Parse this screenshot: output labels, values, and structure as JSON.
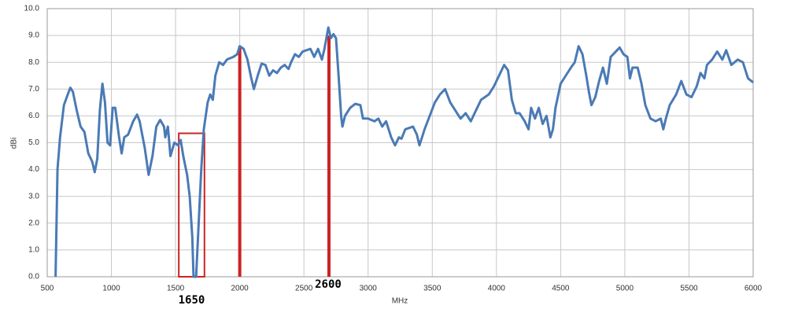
{
  "chart_data": {
    "type": "line",
    "xlabel": "MHz",
    "ylabel": "dBi",
    "xlim": [
      500,
      6000
    ],
    "ylim": [
      0,
      10
    ],
    "xticks": [
      500,
      1000,
      1500,
      2000,
      2500,
      3000,
      3500,
      4000,
      4500,
      5000,
      5500,
      6000
    ],
    "yticks": [
      {
        "value": 0,
        "label": "0.0"
      },
      {
        "value": 1,
        "label": "1.0"
      },
      {
        "value": 2,
        "label": "2.0"
      },
      {
        "value": 3,
        "label": "3.0"
      },
      {
        "value": 4,
        "label": "4.0"
      },
      {
        "value": 5,
        "label": "5.0"
      },
      {
        "value": 6,
        "label": "6.0"
      },
      {
        "value": 7,
        "label": "7.0"
      },
      {
        "value": 8,
        "label": "8.0"
      },
      {
        "value": 9,
        "label": "9.0"
      },
      {
        "value": 10,
        "label": "10.0"
      }
    ],
    "grid": true,
    "x": [
      565,
      580,
      600,
      630,
      660,
      680,
      700,
      730,
      760,
      790,
      820,
      850,
      870,
      890,
      910,
      930,
      950,
      970,
      990,
      1010,
      1030,
      1060,
      1080,
      1100,
      1130,
      1170,
      1200,
      1220,
      1260,
      1290,
      1320,
      1350,
      1380,
      1410,
      1420,
      1440,
      1460,
      1490,
      1520,
      1540,
      1560,
      1590,
      1610,
      1630,
      1640,
      1660,
      1680,
      1700,
      1720,
      1750,
      1770,
      1790,
      1810,
      1840,
      1870,
      1900,
      1950,
      1980,
      2000,
      2030,
      2060,
      2090,
      2110,
      2140,
      2170,
      2200,
      2230,
      2260,
      2290,
      2320,
      2350,
      2380,
      2400,
      2430,
      2460,
      2490,
      2520,
      2550,
      2580,
      2610,
      2640,
      2660,
      2690,
      2710,
      2730,
      2750,
      2770,
      2790,
      2800,
      2820,
      2860,
      2900,
      2940,
      2960,
      3000,
      3050,
      3080,
      3110,
      3140,
      3180,
      3210,
      3240,
      3260,
      3290,
      3350,
      3380,
      3400,
      3440,
      3480,
      3520,
      3560,
      3600,
      3640,
      3680,
      3720,
      3760,
      3800,
      3840,
      3880,
      3940,
      3980,
      4020,
      4060,
      4090,
      4120,
      4150,
      4180,
      4220,
      4250,
      4270,
      4300,
      4330,
      4360,
      4390,
      4420,
      4440,
      4460,
      4500,
      4540,
      4580,
      4610,
      4640,
      4670,
      4700,
      4720,
      4740,
      4770,
      4800,
      4830,
      4860,
      4890,
      4930,
      4960,
      4990,
      5020,
      5040,
      5060,
      5100,
      5130,
      5160,
      5200,
      5240,
      5280,
      5300,
      5320,
      5350,
      5400,
      5440,
      5480,
      5520,
      5560,
      5590,
      5620,
      5640,
      5680,
      5720,
      5760,
      5790,
      5830,
      5880,
      5920,
      5960,
      6000
    ],
    "series": [
      {
        "color": "#4a7ab5",
        "values": [
          0,
          4.0,
          5.2,
          6.4,
          6.8,
          7.05,
          6.9,
          6.2,
          5.6,
          5.4,
          4.6,
          4.3,
          3.9,
          4.4,
          6.2,
          7.2,
          6.5,
          5.0,
          4.9,
          6.3,
          6.3,
          5.2,
          4.6,
          5.2,
          5.3,
          5.8,
          6.05,
          5.8,
          4.8,
          3.8,
          4.5,
          5.6,
          5.85,
          5.6,
          5.2,
          5.6,
          4.5,
          5.0,
          4.9,
          5.1,
          4.5,
          3.8,
          3.0,
          1.5,
          0,
          0,
          2.0,
          4.0,
          5.5,
          6.5,
          6.8,
          6.6,
          7.5,
          8.0,
          7.9,
          8.1,
          8.2,
          8.3,
          8.6,
          8.5,
          8.1,
          7.4,
          7.0,
          7.5,
          7.95,
          7.9,
          7.5,
          7.7,
          7.6,
          7.8,
          7.9,
          7.75,
          8.0,
          8.3,
          8.2,
          8.4,
          8.45,
          8.5,
          8.2,
          8.5,
          8.1,
          8.5,
          9.3,
          8.9,
          9.05,
          8.9,
          7.5,
          6.0,
          5.6,
          6.0,
          6.3,
          6.45,
          6.4,
          5.9,
          5.9,
          5.8,
          5.9,
          5.6,
          5.8,
          5.2,
          4.9,
          5.2,
          5.15,
          5.5,
          5.6,
          5.3,
          4.9,
          5.5,
          6.0,
          6.5,
          6.8,
          7.0,
          6.5,
          6.2,
          5.9,
          6.1,
          5.8,
          6.2,
          6.6,
          6.8,
          7.1,
          7.5,
          7.9,
          7.7,
          6.6,
          6.1,
          6.1,
          5.8,
          5.5,
          6.3,
          5.9,
          6.3,
          5.7,
          6.0,
          5.2,
          5.5,
          6.3,
          7.2,
          7.5,
          7.8,
          8.0,
          8.6,
          8.3,
          7.5,
          6.9,
          6.4,
          6.7,
          7.3,
          7.8,
          7.2,
          8.2,
          8.4,
          8.55,
          8.3,
          8.2,
          7.4,
          7.8,
          7.8,
          7.2,
          6.4,
          5.9,
          5.8,
          5.9,
          5.5,
          5.9,
          6.4,
          6.8,
          7.3,
          6.8,
          6.7,
          7.1,
          7.6,
          7.4,
          7.9,
          8.1,
          8.4,
          8.1,
          8.45,
          7.9,
          8.1,
          8.0,
          7.4,
          7.25
        ]
      }
    ],
    "highlight_box": {
      "x0": 1525,
      "x1": 1725,
      "top": 5.35,
      "color": "#cc2222"
    },
    "marker_lines": [
      {
        "x": 2000,
        "top": 8.6,
        "color": "#cc2222"
      },
      {
        "x": 2695,
        "top": 9.0,
        "color": "#cc2222"
      }
    ],
    "annotations": [
      "1650",
      "2600"
    ]
  }
}
